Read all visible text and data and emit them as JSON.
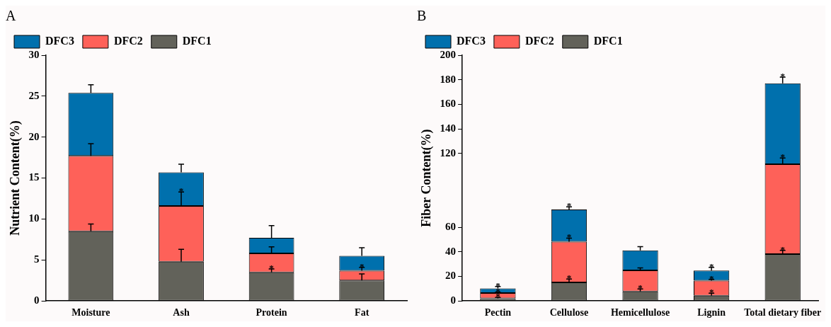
{
  "chart_data": [
    {
      "type": "bar",
      "title": "A",
      "ylabel": "Nutrient Content(%)",
      "categories": [
        "Moisture",
        "Ash",
        "Protein",
        "Fat"
      ],
      "stacked": true,
      "series": [
        {
          "name": "DFC1",
          "color": "#62625a",
          "values": [
            8.5,
            4.8,
            3.5,
            2.5
          ],
          "errors": [
            [
              8.5,
              9.4
            ],
            [
              4.8,
              6.3
            ],
            [
              3.5,
              3.9
            ],
            [
              2.5,
              3.3
            ]
          ]
        },
        {
          "name": "DFC2",
          "color": "#fe6159",
          "values": [
            9.2,
            6.8,
            2.3,
            1.2
          ],
          "errors": [
            [
              17.7,
              19.2
            ],
            [
              11.6,
              13.3
            ],
            [
              5.8,
              6.6
            ],
            [
              3.7,
              4.1
            ]
          ]
        },
        {
          "name": "DFC3",
          "color": "#0070ad",
          "values": [
            7.7,
            4.1,
            1.9,
            1.8
          ],
          "errors": [
            [
              25.4,
              26.4
            ],
            [
              15.7,
              16.7
            ],
            [
              7.7,
              9.2
            ],
            [
              5.5,
              6.5
            ]
          ]
        }
      ],
      "ylim": [
        0,
        30
      ],
      "yticks": [
        0,
        5,
        10,
        15,
        20,
        25,
        30
      ],
      "grid": false,
      "legend": "top left",
      "annotations": [
        {
          "text": "*",
          "x": "Ash",
          "y": 11.6
        },
        {
          "text": "*",
          "x": "Protein",
          "y": 3.5
        },
        {
          "text": "*",
          "x": "Fat",
          "y": 3.7
        }
      ]
    },
    {
      "type": "bar",
      "title": "B",
      "ylabel": "Fiber Content(%)",
      "categories": [
        "Pectin",
        "Cellulose",
        "Hemicellulose",
        "Lignin",
        "Total dietary fiber"
      ],
      "stacked": true,
      "series": [
        {
          "name": "DFC1",
          "color": "#62625a",
          "values": [
            2.1,
            15.1,
            7.7,
            4.3,
            38.1
          ],
          "errors": [
            [
              2.1,
              2.8
            ],
            [
              15.1,
              17.9
            ],
            [
              7.7,
              9.8
            ],
            [
              4.3,
              6.3
            ],
            [
              38.1,
              41.1
            ]
          ]
        },
        {
          "name": "DFC2",
          "color": "#fe6159",
          "values": [
            4.3,
            33.1,
            17.2,
            12.3,
            73.2
          ],
          "errors": [
            [
              6.4,
              7.1
            ],
            [
              48.2,
              51.1
            ],
            [
              24.9,
              26.9
            ],
            [
              16.6,
              17.6
            ],
            [
              111.3,
              116.3
            ]
          ]
        },
        {
          "name": "DFC3",
          "color": "#0070ad",
          "values": [
            3.8,
            26.2,
            16.2,
            8.1,
            65.8
          ],
          "errors": [
            [
              10.2,
              11.8
            ],
            [
              74.4,
              76.6
            ],
            [
              41.1,
              44.2
            ],
            [
              24.7,
              27.4
            ],
            [
              177.1,
              182.1
            ]
          ]
        }
      ],
      "ylim": [
        0,
        200
      ],
      "yticks": [
        0,
        20,
        40,
        60,
        120,
        140,
        160,
        180,
        200
      ],
      "grid": false,
      "legend": "top left",
      "annotations": [
        {
          "text": "*",
          "x": "Pectin",
          "y": 2.1
        },
        {
          "text": "*",
          "x": "Pectin",
          "y": 6.4
        },
        {
          "text": "*",
          "x": "Pectin",
          "y": 10.2
        },
        {
          "text": "*",
          "x": "Cellulose",
          "y": 15.1
        },
        {
          "text": "*",
          "x": "Cellulose",
          "y": 48.2
        },
        {
          "text": "*",
          "x": "Cellulose",
          "y": 74.4
        },
        {
          "text": "*",
          "x": "Hemicellulose",
          "y": 7.7
        },
        {
          "text": "*",
          "x": "Lignin",
          "y": 4.3
        },
        {
          "text": "*",
          "x": "Lignin",
          "y": 16.6
        },
        {
          "text": "*",
          "x": "Lignin",
          "y": 24.7
        },
        {
          "text": "*",
          "x": "Total dietary fiber",
          "y": 38.1
        },
        {
          "text": "*",
          "x": "Total dietary fiber",
          "y": 111.3
        },
        {
          "text": "*",
          "x": "Total dietary fiber",
          "y": 177.1
        }
      ]
    }
  ]
}
